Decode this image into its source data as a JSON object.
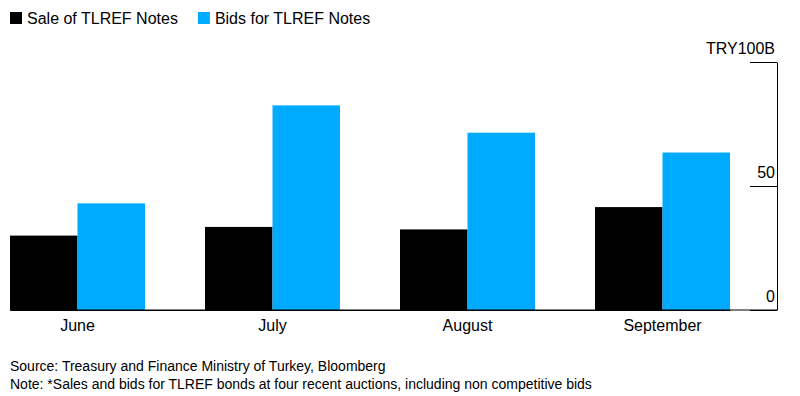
{
  "chart_data": {
    "type": "bar",
    "categories": [
      "June",
      "July",
      "August",
      "September"
    ],
    "series": [
      {
        "name": "Sale of TLREF Notes",
        "color": "#000000",
        "values": [
          30,
          33.5,
          32.5,
          41.5
        ]
      },
      {
        "name": "Bids for TLREF Notes",
        "color": "#00aaff",
        "values": [
          43,
          82.5,
          71.5,
          63.5
        ]
      }
    ],
    "ylim": [
      0,
      100
    ],
    "yticks": [
      0,
      50,
      {
        "value": 100,
        "label": "TRY100B"
      }
    ],
    "grid": false,
    "legend": "top-left",
    "source": "Source: Treasury and Finance Ministry of Turkey, Bloomberg",
    "note": "Note: *Sales and bids for TLREF bonds at four recent auctions, including non competitive bids"
  }
}
